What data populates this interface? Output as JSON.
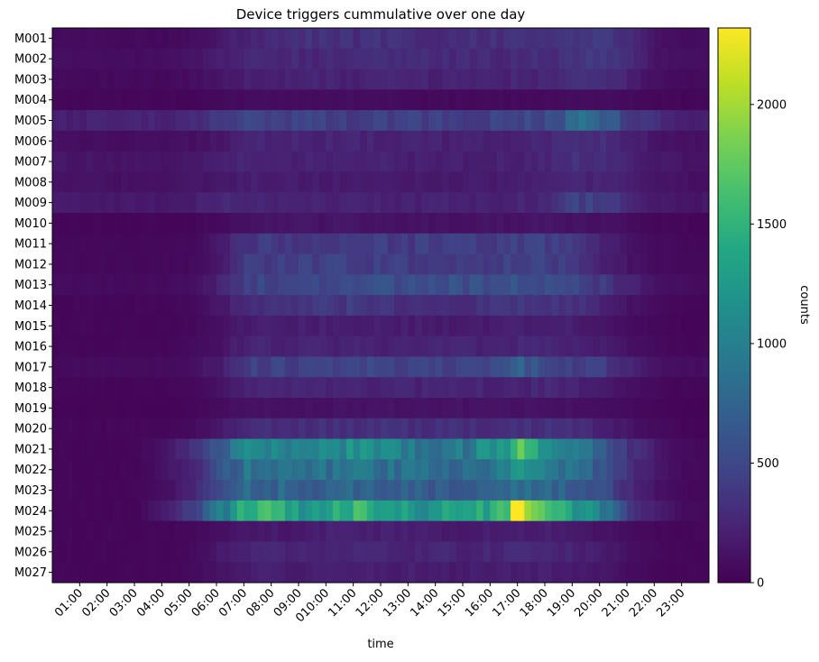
{
  "chart_data": {
    "type": "heatmap",
    "title": "Device triggers cummulative over one day",
    "xlabel": "time",
    "ylabel": "",
    "colorbar_label": "counts",
    "colormap": "viridis",
    "value_range": [
      0,
      2320
    ],
    "colorbar_ticks": [
      0,
      500,
      1000,
      1500,
      2000
    ],
    "rows": [
      "M001",
      "M002",
      "M003",
      "M004",
      "M005",
      "M006",
      "M007",
      "M008",
      "M009",
      "M010",
      "M011",
      "M012",
      "M013",
      "M014",
      "M015",
      "M016",
      "M017",
      "M018",
      "M019",
      "M020",
      "M021",
      "M022",
      "M023",
      "M024",
      "M025",
      "M026",
      "M027"
    ],
    "x_tick_labels": [
      "01:00",
      "02:00",
      "03:00",
      "04:00",
      "05:00",
      "06:00",
      "07:00",
      "08:00",
      "09:00",
      "010:00",
      "11:00",
      "12:00",
      "13:00",
      "14:00",
      "15:00",
      "16:00",
      "17:00",
      "18:00",
      "19:00",
      "20:00",
      "21:00",
      "22:00",
      "23:00"
    ],
    "x_tick_hours": [
      1,
      2,
      3,
      4,
      5,
      6,
      7,
      8,
      9,
      10,
      11,
      12,
      13,
      14,
      15,
      16,
      17,
      18,
      19,
      20,
      21,
      22,
      23
    ],
    "columns_per_hour": 4,
    "hourly_values_note": "hourly estimates per device (hours 0-23), interpolated to 15-minute bins",
    "values": [
      [
        70,
        70,
        60,
        60,
        60,
        80,
        160,
        250,
        300,
        330,
        340,
        300,
        330,
        310,
        300,
        330,
        330,
        330,
        320,
        370,
        420,
        300,
        120,
        80
      ],
      [
        90,
        90,
        80,
        80,
        90,
        120,
        200,
        260,
        280,
        260,
        270,
        280,
        290,
        290,
        270,
        280,
        270,
        290,
        300,
        360,
        380,
        260,
        120,
        90
      ],
      [
        60,
        60,
        60,
        60,
        60,
        80,
        140,
        200,
        220,
        220,
        230,
        230,
        240,
        230,
        220,
        230,
        240,
        240,
        250,
        300,
        300,
        220,
        100,
        70
      ],
      [
        40,
        40,
        40,
        40,
        40,
        40,
        60,
        80,
        80,
        80,
        80,
        80,
        80,
        70,
        60,
        60,
        60,
        70,
        70,
        80,
        80,
        60,
        50,
        40
      ],
      [
        200,
        210,
        220,
        230,
        240,
        260,
        380,
        480,
        470,
        460,
        430,
        430,
        440,
        450,
        440,
        440,
        460,
        470,
        520,
        800,
        760,
        400,
        280,
        200
      ],
      [
        90,
        90,
        90,
        90,
        90,
        100,
        150,
        240,
        260,
        250,
        240,
        240,
        240,
        230,
        220,
        220,
        230,
        240,
        260,
        300,
        300,
        220,
        140,
        100
      ],
      [
        140,
        140,
        140,
        130,
        130,
        160,
        200,
        260,
        250,
        230,
        220,
        220,
        220,
        210,
        200,
        200,
        210,
        220,
        240,
        330,
        330,
        240,
        160,
        130
      ],
      [
        110,
        110,
        110,
        110,
        110,
        130,
        150,
        190,
        190,
        180,
        180,
        180,
        180,
        170,
        170,
        170,
        180,
        190,
        200,
        230,
        230,
        200,
        140,
        110
      ],
      [
        160,
        170,
        170,
        170,
        170,
        190,
        260,
        260,
        250,
        240,
        220,
        230,
        230,
        220,
        220,
        220,
        230,
        240,
        250,
        450,
        460,
        260,
        170,
        140
      ],
      [
        40,
        40,
        40,
        40,
        40,
        40,
        60,
        110,
        130,
        130,
        130,
        130,
        130,
        120,
        120,
        120,
        130,
        130,
        130,
        120,
        110,
        80,
        50,
        40
      ],
      [
        50,
        50,
        50,
        50,
        50,
        60,
        170,
        360,
        390,
        390,
        420,
        440,
        420,
        410,
        410,
        400,
        420,
        450,
        430,
        360,
        240,
        120,
        70,
        50
      ],
      [
        50,
        50,
        50,
        50,
        50,
        60,
        160,
        390,
        420,
        420,
        440,
        450,
        430,
        420,
        420,
        410,
        430,
        460,
        440,
        370,
        240,
        120,
        70,
        50
      ],
      [
        70,
        70,
        70,
        70,
        70,
        90,
        230,
        470,
        500,
        480,
        520,
        570,
        560,
        560,
        560,
        550,
        560,
        620,
        580,
        500,
        380,
        220,
        120,
        80
      ],
      [
        40,
        40,
        40,
        40,
        40,
        60,
        150,
        300,
        320,
        330,
        380,
        390,
        350,
        330,
        330,
        320,
        340,
        380,
        370,
        330,
        240,
        120,
        60,
        40
      ],
      [
        40,
        40,
        40,
        40,
        40,
        50,
        100,
        180,
        200,
        200,
        200,
        200,
        190,
        190,
        180,
        180,
        190,
        200,
        200,
        190,
        140,
        80,
        50,
        40
      ],
      [
        40,
        40,
        40,
        40,
        40,
        60,
        120,
        240,
        240,
        230,
        230,
        240,
        240,
        240,
        240,
        240,
        240,
        250,
        250,
        240,
        180,
        100,
        60,
        40
      ],
      [
        70,
        70,
        70,
        70,
        70,
        90,
        200,
        440,
        450,
        440,
        460,
        480,
        470,
        460,
        460,
        460,
        500,
        700,
        480,
        450,
        420,
        240,
        120,
        80
      ],
      [
        40,
        40,
        40,
        40,
        40,
        50,
        130,
        230,
        250,
        240,
        240,
        240,
        240,
        240,
        230,
        230,
        240,
        250,
        250,
        240,
        180,
        100,
        60,
        40
      ],
      [
        30,
        30,
        30,
        30,
        30,
        40,
        80,
        120,
        120,
        120,
        120,
        120,
        120,
        120,
        120,
        120,
        120,
        120,
        120,
        110,
        90,
        60,
        40,
        30
      ],
      [
        40,
        40,
        40,
        40,
        40,
        60,
        160,
        300,
        310,
        310,
        320,
        330,
        330,
        320,
        310,
        300,
        300,
        320,
        320,
        300,
        220,
        120,
        60,
        40
      ],
      [
        40,
        40,
        40,
        40,
        120,
        300,
        600,
        1300,
        1100,
        1000,
        1050,
        1200,
        1000,
        950,
        900,
        950,
        1200,
        1700,
        1300,
        900,
        700,
        350,
        150,
        60
      ],
      [
        40,
        40,
        40,
        40,
        110,
        260,
        560,
        900,
        900,
        840,
        860,
        900,
        840,
        820,
        800,
        820,
        900,
        1100,
        980,
        800,
        650,
        320,
        140,
        60
      ],
      [
        40,
        40,
        40,
        40,
        100,
        230,
        460,
        760,
        760,
        720,
        740,
        760,
        720,
        700,
        680,
        700,
        760,
        900,
        820,
        680,
        540,
        280,
        120,
        60
      ],
      [
        40,
        40,
        40,
        40,
        180,
        420,
        900,
        1500,
        1400,
        1300,
        1350,
        1500,
        1350,
        1300,
        1250,
        1300,
        1550,
        2250,
        1950,
        1350,
        900,
        400,
        180,
        70
      ],
      [
        40,
        40,
        40,
        40,
        40,
        50,
        100,
        160,
        170,
        160,
        220,
        230,
        200,
        190,
        180,
        180,
        200,
        200,
        200,
        170,
        130,
        80,
        50,
        40
      ],
      [
        40,
        40,
        40,
        40,
        40,
        60,
        160,
        240,
        240,
        230,
        250,
        260,
        240,
        240,
        250,
        240,
        250,
        260,
        260,
        230,
        170,
        100,
        60,
        40
      ],
      [
        40,
        40,
        40,
        40,
        40,
        60,
        130,
        200,
        200,
        190,
        200,
        200,
        190,
        190,
        180,
        180,
        190,
        200,
        200,
        180,
        140,
        80,
        50,
        40
      ]
    ]
  }
}
